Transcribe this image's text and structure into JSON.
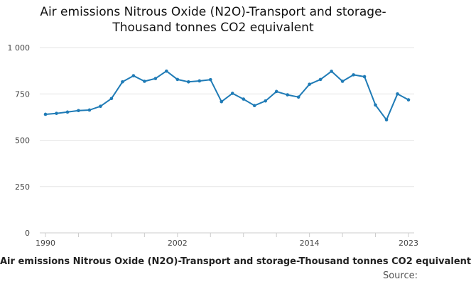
{
  "chart_data": {
    "type": "line",
    "title_line1": "Air emissions Nitrous Oxide (N2O)-Transport and storage-",
    "title_line2": "Thousand tonnes CO2 equivalent",
    "legend_label": "Air emissions Nitrous Oxide (N2O)-Transport and storage-Thousand tonnes CO2 equivalent",
    "source_label": "Source:",
    "xlabel": "",
    "ylabel": "",
    "ylim": [
      0,
      1000
    ],
    "xlim": [
      1990,
      2023
    ],
    "y_ticks": [
      0,
      250,
      500,
      750,
      1000
    ],
    "y_tick_labels": [
      "0",
      "250",
      "500",
      "750",
      "1 000"
    ],
    "x_tick_labels": [
      "1990",
      "2002",
      "2014",
      "2023"
    ],
    "grid": "horizontal",
    "series": [
      {
        "name": "Air emissions Nitrous Oxide (N2O)-Transport and storage-Thousand tonnes CO2 equivalent",
        "color": "#1f7bb6",
        "x": [
          1990,
          1991,
          1992,
          1993,
          1994,
          1995,
          1996,
          1997,
          1998,
          1999,
          2000,
          2001,
          2002,
          2003,
          2004,
          2005,
          2006,
          2007,
          2008,
          2009,
          2010,
          2011,
          2012,
          2013,
          2014,
          2015,
          2016,
          2017,
          2018,
          2019,
          2020,
          2021,
          2022,
          2023
        ],
        "values": [
          640,
          645,
          652,
          660,
          663,
          683,
          725,
          815,
          848,
          818,
          833,
          873,
          828,
          815,
          820,
          827,
          708,
          753,
          722,
          687,
          712,
          763,
          745,
          733,
          802,
          828,
          872,
          818,
          853,
          843,
          690,
          610,
          750,
          718
        ]
      }
    ]
  }
}
